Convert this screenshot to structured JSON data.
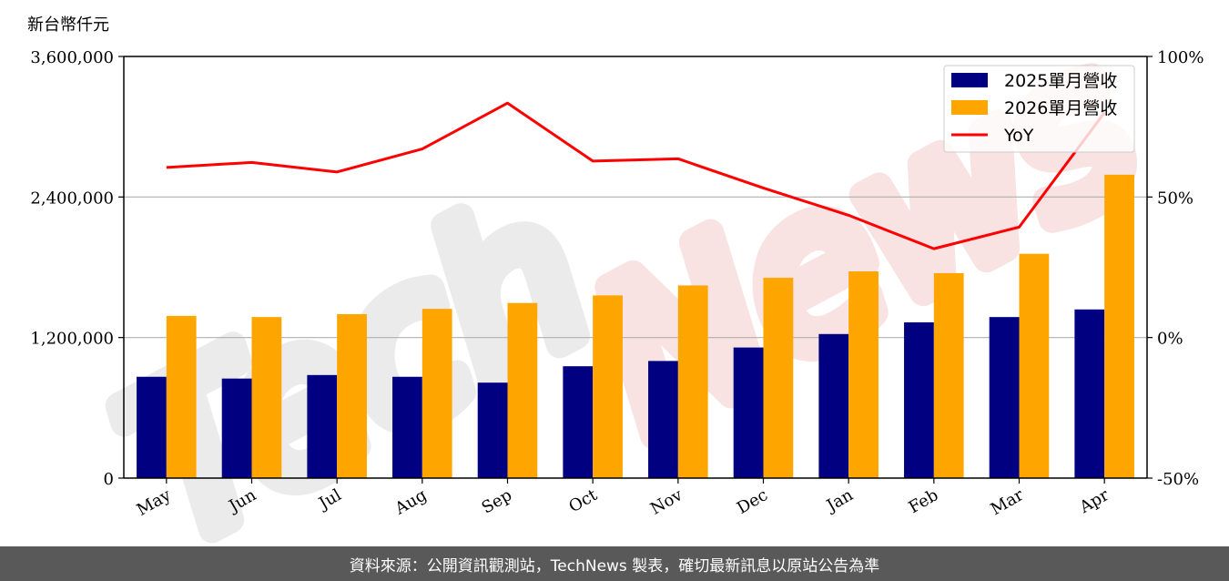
{
  "unit_label": "新台幣仟元",
  "footer_text": "資料來源：公開資訊觀測站，TechNews 製表，確切最新訊息以原站公告為準",
  "watermark": "TechNews",
  "colors": {
    "series_2025": "#000080",
    "series_2026": "#FFA500",
    "yoy": "#FF0000",
    "grid": "#B0B0B0",
    "watermark_dark": "#EBEBEB",
    "watermark_light": "#F8E2E2",
    "footer_bg": "#595959"
  },
  "chart_data": {
    "type": "bar",
    "categories": [
      "May",
      "Jun",
      "Jul",
      "Aug",
      "Sep",
      "Oct",
      "Nov",
      "Dec",
      "Jan",
      "Feb",
      "Mar",
      "Apr"
    ],
    "series": [
      {
        "name": "2025單月營收",
        "axis": "left",
        "values": [
          865000,
          850000,
          880000,
          865000,
          815000,
          955000,
          1000000,
          1115000,
          1230000,
          1330000,
          1375000,
          1440000
        ]
      },
      {
        "name": "2026單月營收",
        "axis": "left",
        "values": [
          1385000,
          1375000,
          1400000,
          1445000,
          1495000,
          1560000,
          1645000,
          1710000,
          1765000,
          1750000,
          1915000,
          2590000
        ]
      },
      {
        "name": "YoY",
        "type": "line",
        "axis": "right",
        "values": [
          60.5,
          62.3,
          58.9,
          67.1,
          83.4,
          62.8,
          63.6,
          53.2,
          43.5,
          31.6,
          39.3,
          80.0
        ]
      }
    ],
    "left_axis": {
      "ylim": [
        0,
        3600000
      ],
      "ticks": [
        "0",
        "1,200,000",
        "2,400,000",
        "3,600,000"
      ]
    },
    "right_axis": {
      "ylim": [
        -50,
        100
      ],
      "ticks": [
        "-50%",
        "0%",
        "50%",
        "100%"
      ]
    },
    "grid": "horizontal",
    "legend": "top-right"
  }
}
